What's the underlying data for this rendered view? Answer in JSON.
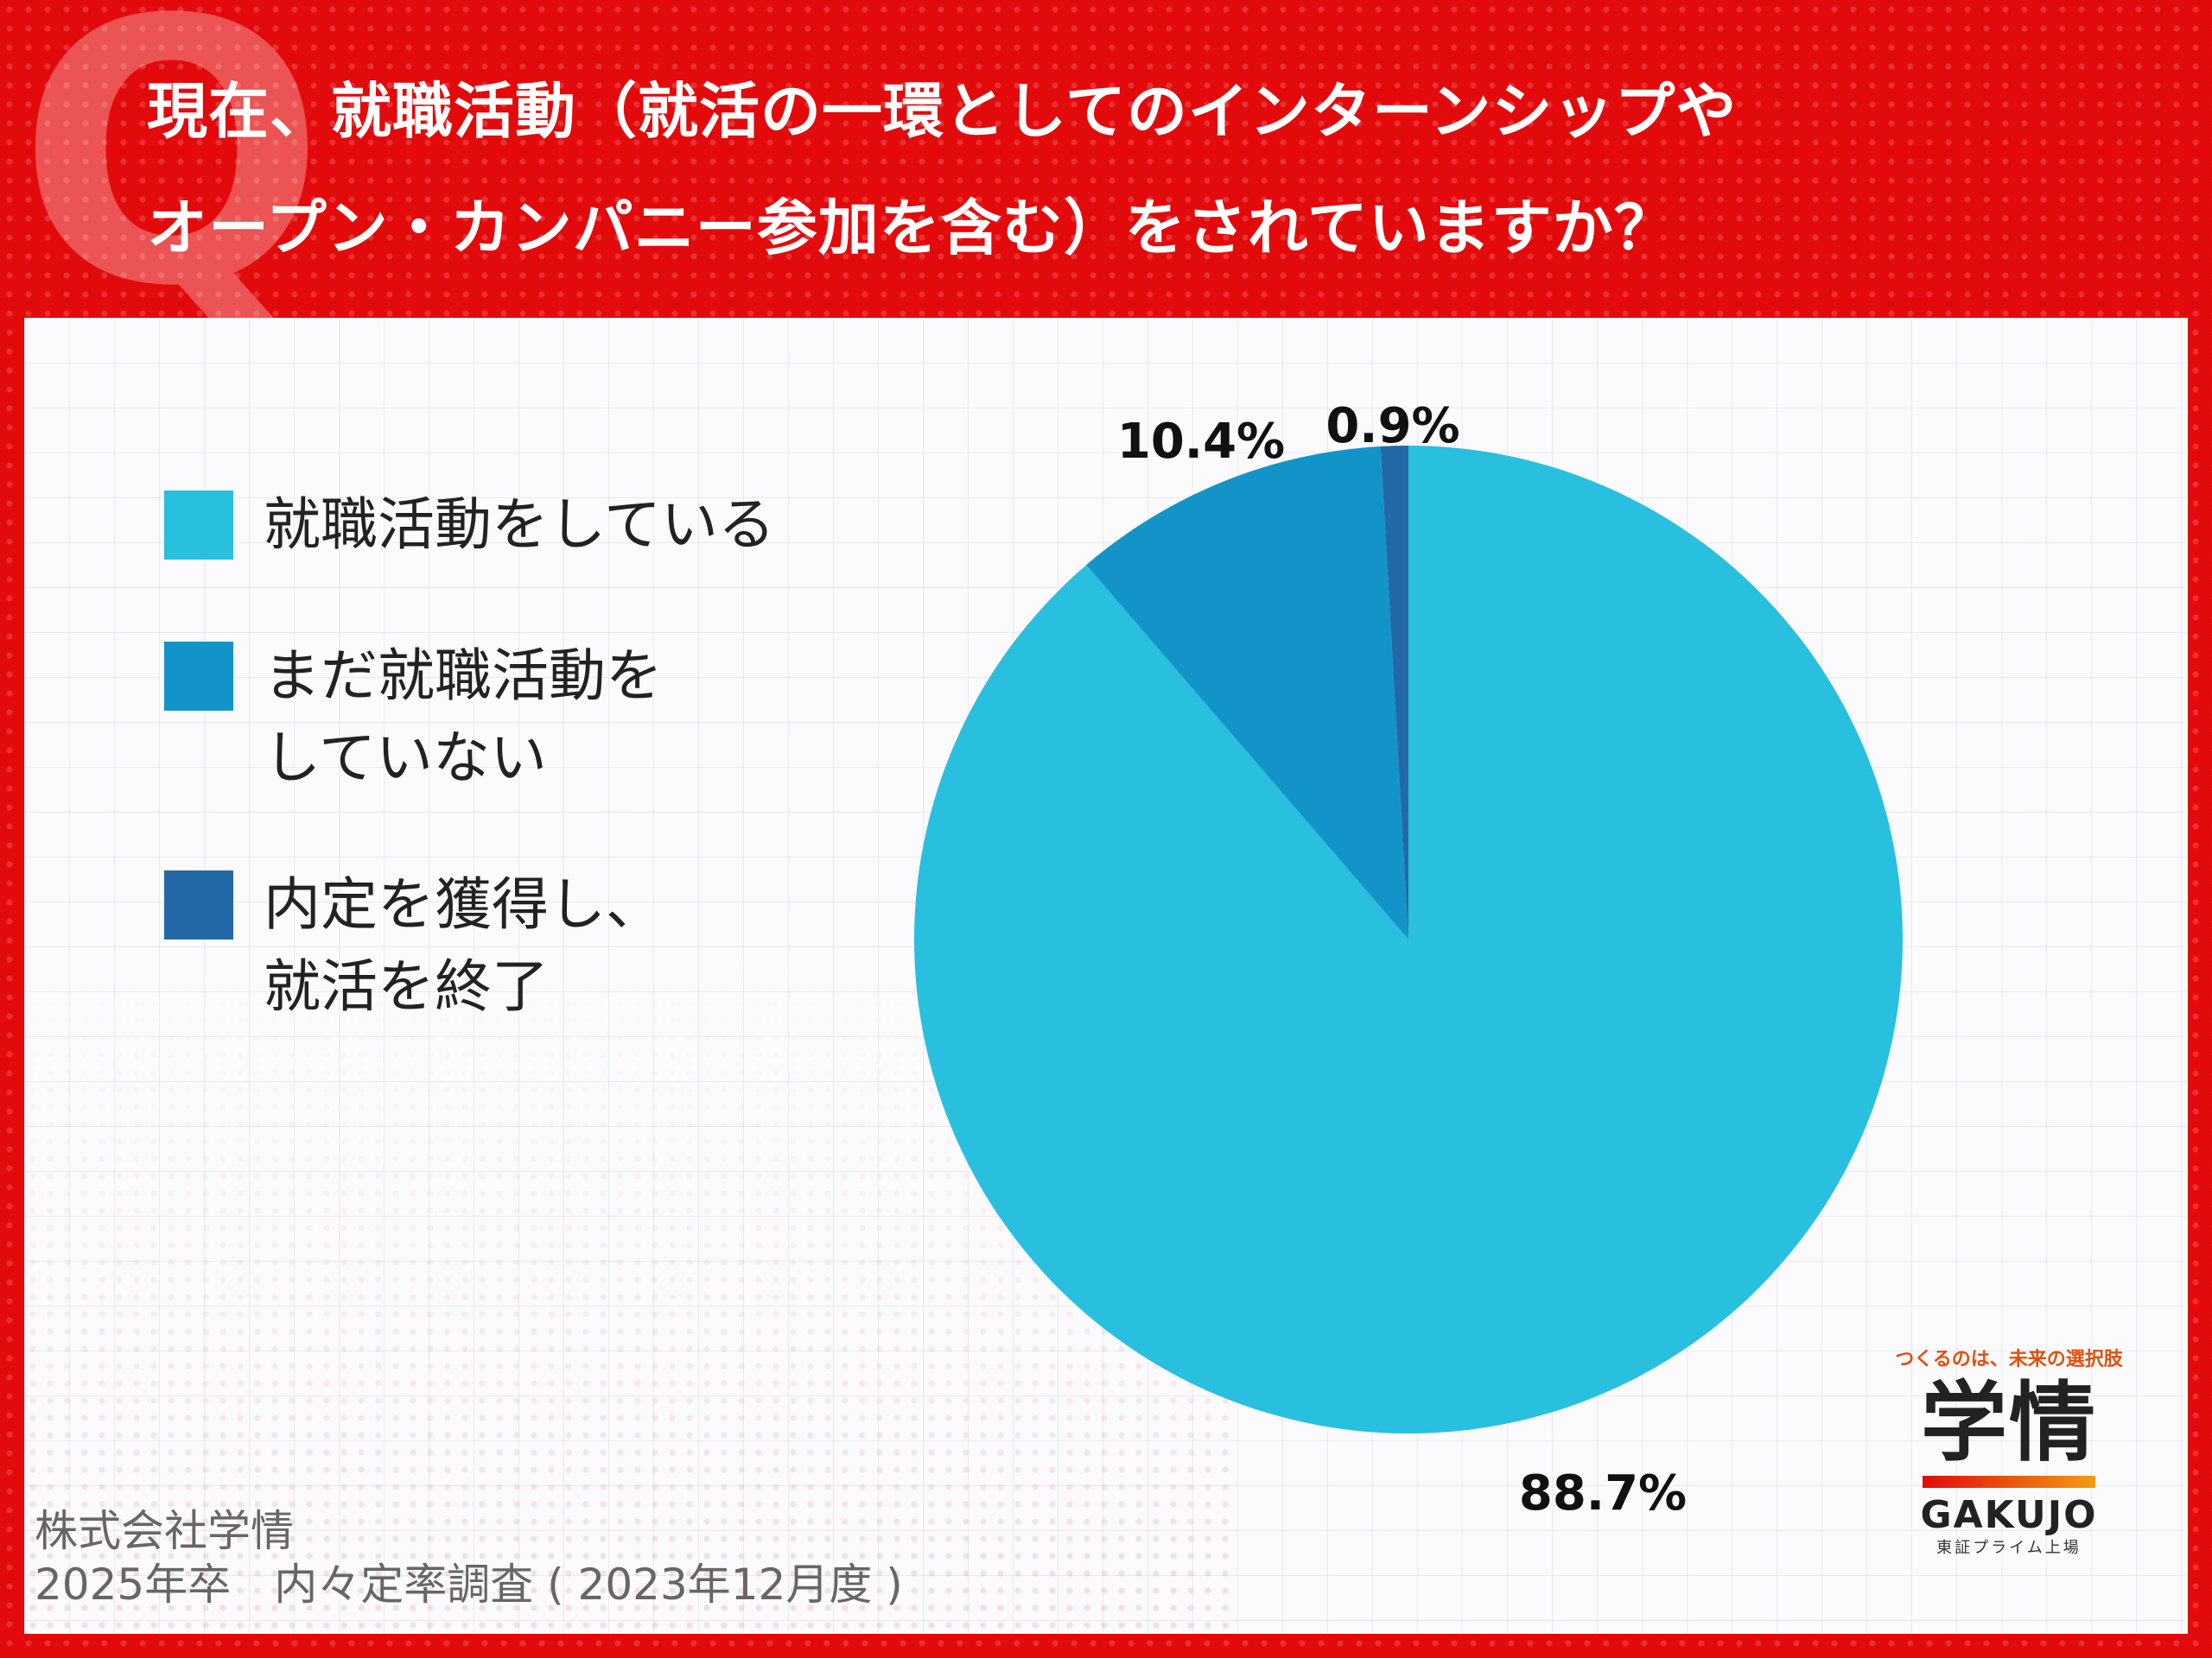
{
  "header": {
    "title_lines": [
      "現在、就職活動（就活の一環としてのインターンシップや",
      "オープン・カンパニー参加を含む）をされていますか？"
    ],
    "badge": "Q"
  },
  "chart_data": {
    "type": "pie",
    "title": "現在、就職活動（就活の一環としてのインターンシップやオープン・カンパニー参加を含む）をされていますか？",
    "categories": [
      "就職活動をしている",
      "まだ就職活動をしていない",
      "内定を獲得し、就活を終了"
    ],
    "values": [
      88.7,
      10.4,
      0.9
    ],
    "labels": [
      "88.7%",
      "10.4%",
      "0.9%"
    ],
    "unit": "%",
    "start_angle": "12 o'clock",
    "direction": "clockwise",
    "legend": {
      "position": "left",
      "entries": [
        {
          "label": "就職活動をしている",
          "color": "#29bfdf"
        },
        {
          "label": "まだ就職活動を\nしていない",
          "color": "#1394c9"
        },
        {
          "label": "内定を獲得し、\n就活を終了",
          "color": "#2369a8"
        }
      ]
    },
    "colors": [
      "#29bfdf",
      "#1394c9",
      "#2369a8"
    ]
  },
  "logo": {
    "tagline": "つくるのは、未来の選択肢",
    "name": "学情",
    "name_en": "GAKUJO",
    "sub": "東証プライム上場"
  },
  "source": {
    "line1": "株式会社学情",
    "line2": "2025年卒　内々定率調査 ( 2023年12月度 )"
  },
  "colors": {
    "frame": "#e30a0b",
    "panel": "#fbfbfd"
  }
}
